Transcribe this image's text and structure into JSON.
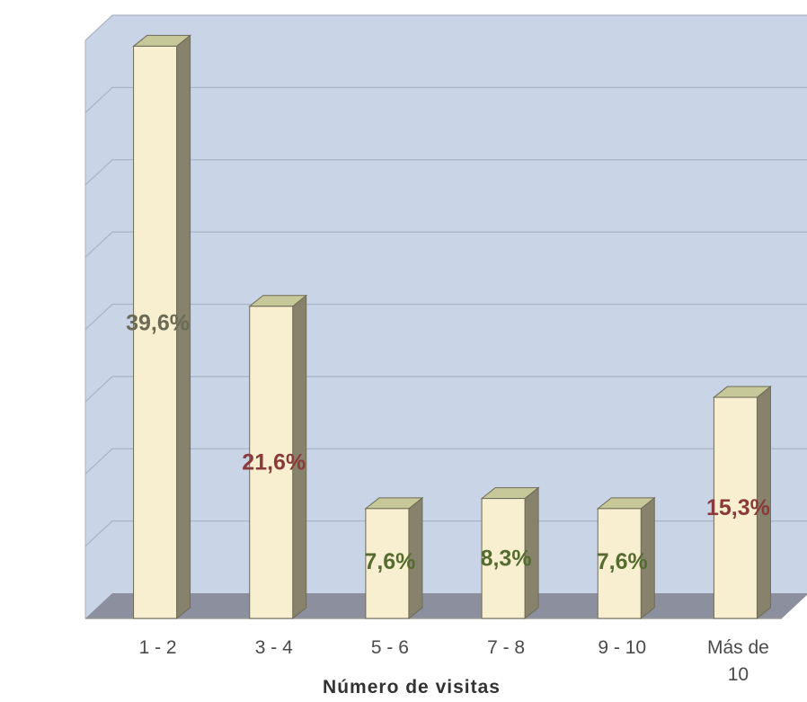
{
  "chart_data": {
    "type": "bar",
    "categories": [
      "1 - 2",
      "3 - 4",
      "5 - 6",
      "7 - 8",
      "9 - 10",
      "Más de 10"
    ],
    "category_lines": [
      [
        "1 - 2"
      ],
      [
        "3 - 4"
      ],
      [
        "5 - 6"
      ],
      [
        "7 - 8"
      ],
      [
        "9 - 10"
      ],
      [
        "Más de",
        "10"
      ]
    ],
    "values": [
      39.6,
      21.6,
      7.6,
      8.3,
      7.6,
      15.3
    ],
    "data_labels": [
      "39,6%",
      "21,6%",
      "7,6%",
      "8,3%",
      "7,6%",
      "15,3%"
    ],
    "data_label_colors": [
      "#6b6b55",
      "#8a3a3a",
      "#556b2f",
      "#556b2f",
      "#556b2f",
      "#8a3a3a"
    ],
    "xlabel": "Número de visitas",
    "ylabel": "",
    "title": "",
    "ylim": [
      0,
      40
    ],
    "grid": true,
    "style": "3d-column",
    "colors": {
      "bar_front": "#f7efcf",
      "bar_side": "#86826b",
      "bar_top": "#c6c89a",
      "wall": "#c9d4e6",
      "floor": "#8c8f9e",
      "gridline": "#aab4c4"
    }
  }
}
